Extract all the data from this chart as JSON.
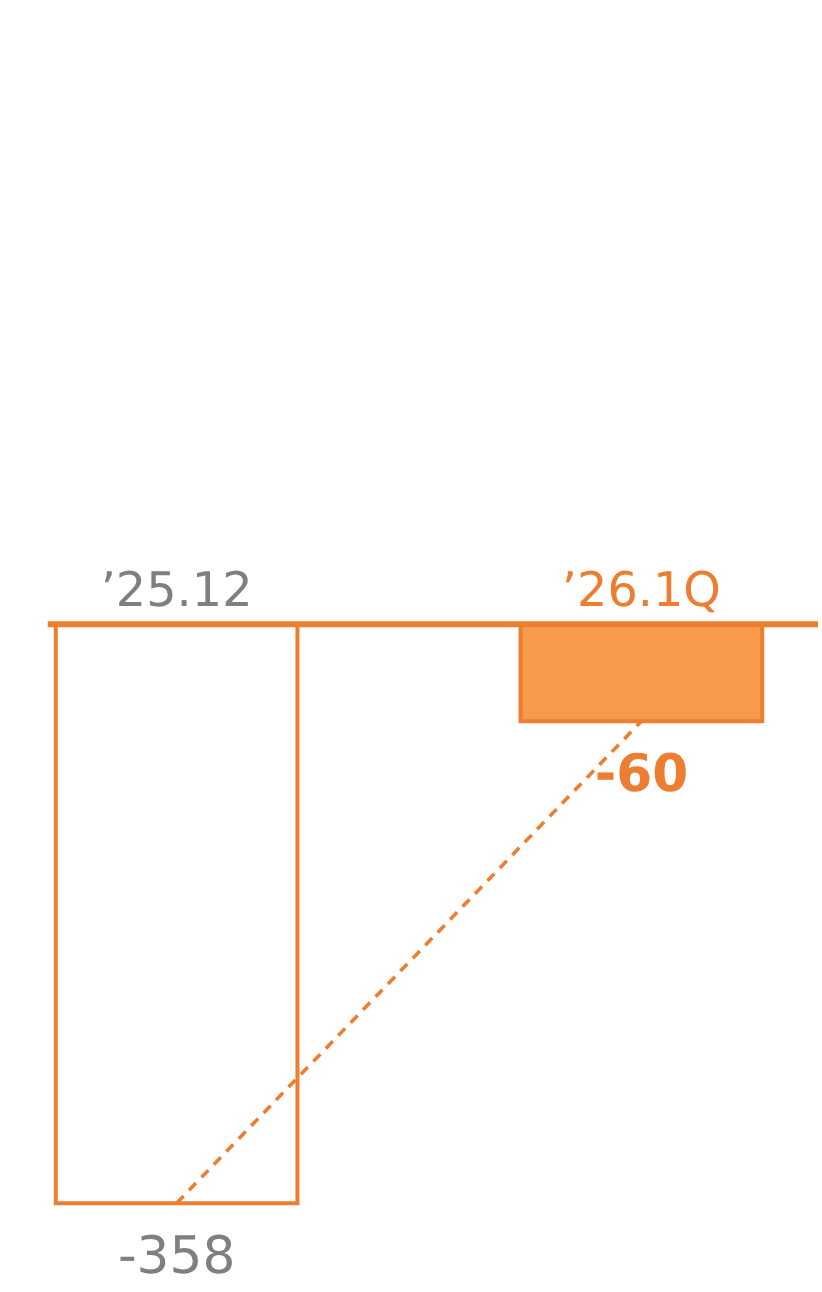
{
  "chart_data": {
    "type": "bar",
    "categories": [
      "’25.12",
      "’26.1Q"
    ],
    "ylim": [
      -411,
      384
    ],
    "series": [
      {
        "color": "#ed7d31",
        "colors": [
          "#ffffff",
          "#f79a4a"
        ],
        "values": [
          -358,
          -60
        ],
        "value_labels": [
          "-358",
          "-60"
        ]
      },
      {
        "type": "line",
        "color": "#ed7d31",
        "line_style": "dashed",
        "values": [
          -358,
          -60
        ]
      }
    ]
  }
}
